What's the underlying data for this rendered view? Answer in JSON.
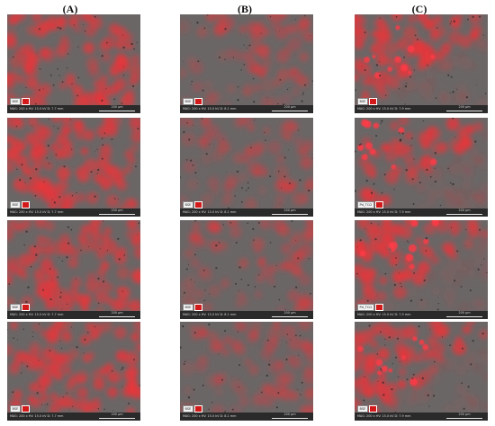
{
  "columns": [
    {
      "label": "(A)"
    },
    {
      "label": "(B)"
    },
    {
      "label": "(C)"
    }
  ],
  "panels": [
    {
      "col": 0,
      "row": 0,
      "chip": "BSE",
      "meta": "MAG: 200 x  HV: 15.0 kV  D: 7.7 mm",
      "scale": "200 μm"
    },
    {
      "col": 1,
      "row": 0,
      "chip": "BSE",
      "meta": "MAG: 200 x  HV: 15.0 kV  D: 8.1 mm",
      "scale": "200 μm"
    },
    {
      "col": 2,
      "row": 0,
      "chip": "BSE",
      "meta": "MAG: 200 x  HV: 15.0 kV  D: 7.9 mm",
      "scale": "200 μm"
    },
    {
      "col": 0,
      "row": 1,
      "chip": "BSE",
      "meta": "MAG: 200 x  HV: 15.0 kV  D: 7.7 mm",
      "scale": "200 μm"
    },
    {
      "col": 1,
      "row": 1,
      "chip": "BSE",
      "meta": "MAG: 200 x  HV: 15.0 kV  D: 8.1 mm",
      "scale": "200 μm"
    },
    {
      "col": 2,
      "row": 1,
      "chip": "Pd_Ti12",
      "meta": "MAG: 200 x  HV: 15.0 kV  D: 7.9 mm",
      "scale": "200 μm"
    },
    {
      "col": 0,
      "row": 2,
      "chip": "BSE",
      "meta": "MAG: 200 x  HV: 15.0 kV  D: 7.7 mm",
      "scale": "200 μm"
    },
    {
      "col": 1,
      "row": 2,
      "chip": "BSE",
      "meta": "MAG: 200 x  HV: 15.0 kV  D: 8.1 mm",
      "scale": "200 μm"
    },
    {
      "col": 2,
      "row": 2,
      "chip": "Pd_Ti12",
      "meta": "MAG: 200 x  HV: 15.0 kV  D: 7.9 mm",
      "scale": "200 μm"
    },
    {
      "col": 0,
      "row": 3,
      "chip": "BSE",
      "meta": "MAG: 200 x  HV: 15.0 kV  D: 7.7 mm",
      "scale": "200 μm"
    },
    {
      "col": 1,
      "row": 3,
      "chip": "BSE",
      "meta": "MAG: 200 x  HV: 15.0 kV  D: 8.1 mm",
      "scale": "200 μm"
    },
    {
      "col": 2,
      "row": 3,
      "chip": "BSE",
      "meta": "MAG: 200 x  HV: 15.0 kV  D: 7.9 mm",
      "scale": "200 μm"
    }
  ],
  "colors": {
    "overlay_red": "#e8353a",
    "matrix_gray": "#6b6666",
    "label_bar": "#2a2a2a",
    "swatch": "#d21a1a"
  }
}
